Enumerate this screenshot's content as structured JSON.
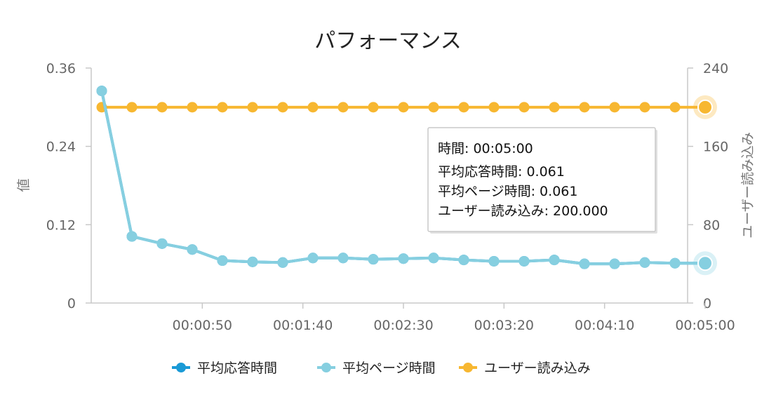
{
  "chart_data": {
    "type": "line",
    "title": "パフォーマンス",
    "xlabel": "",
    "ylabel": "値",
    "y2label": "ユーザー読み込み",
    "ylim": [
      0,
      0.36
    ],
    "y2lim": [
      0,
      240
    ],
    "y_ticks": [
      "0",
      "0.12",
      "0.24",
      "0.36"
    ],
    "y2_ticks": [
      "0",
      "80",
      "160",
      "240"
    ],
    "x_ticks": [
      "00:00:50",
      "00:01:40",
      "00:02:30",
      "00:03:20",
      "00:04:10",
      "00:05:00"
    ],
    "x_seconds": [
      0,
      15,
      30,
      45,
      60,
      75,
      90,
      105,
      120,
      135,
      150,
      165,
      180,
      195,
      210,
      225,
      240,
      255,
      270,
      285,
      300
    ],
    "grid": false,
    "legend_position": "bottom",
    "series": [
      {
        "name": "平均応答時間",
        "axis": "left",
        "color": "#1a9ad6",
        "values": [
          0.325,
          0.102,
          0.091,
          0.082,
          0.065,
          0.063,
          0.062,
          0.069,
          0.069,
          0.067,
          0.068,
          0.069,
          0.066,
          0.064,
          0.064,
          0.066,
          0.06,
          0.06,
          0.062,
          0.061,
          0.061
        ]
      },
      {
        "name": "平均ページ時間",
        "axis": "left",
        "color": "#86cfe0",
        "values": [
          0.325,
          0.102,
          0.091,
          0.082,
          0.065,
          0.063,
          0.062,
          0.069,
          0.069,
          0.067,
          0.068,
          0.069,
          0.066,
          0.064,
          0.064,
          0.066,
          0.06,
          0.06,
          0.062,
          0.061,
          0.061
        ]
      },
      {
        "name": "ユーザー読み込み",
        "axis": "right",
        "color": "#f7b731",
        "values": [
          200,
          200,
          200,
          200,
          200,
          200,
          200,
          200,
          200,
          200,
          200,
          200,
          200,
          200,
          200,
          200,
          200,
          200,
          200,
          200,
          200
        ]
      }
    ],
    "tooltip": {
      "lines": [
        "時間: 00:05:00",
        "平均応答時間: 0.061",
        "平均ページ時間: 0.061",
        "ユーザー読み込み: 200.000"
      ]
    }
  }
}
